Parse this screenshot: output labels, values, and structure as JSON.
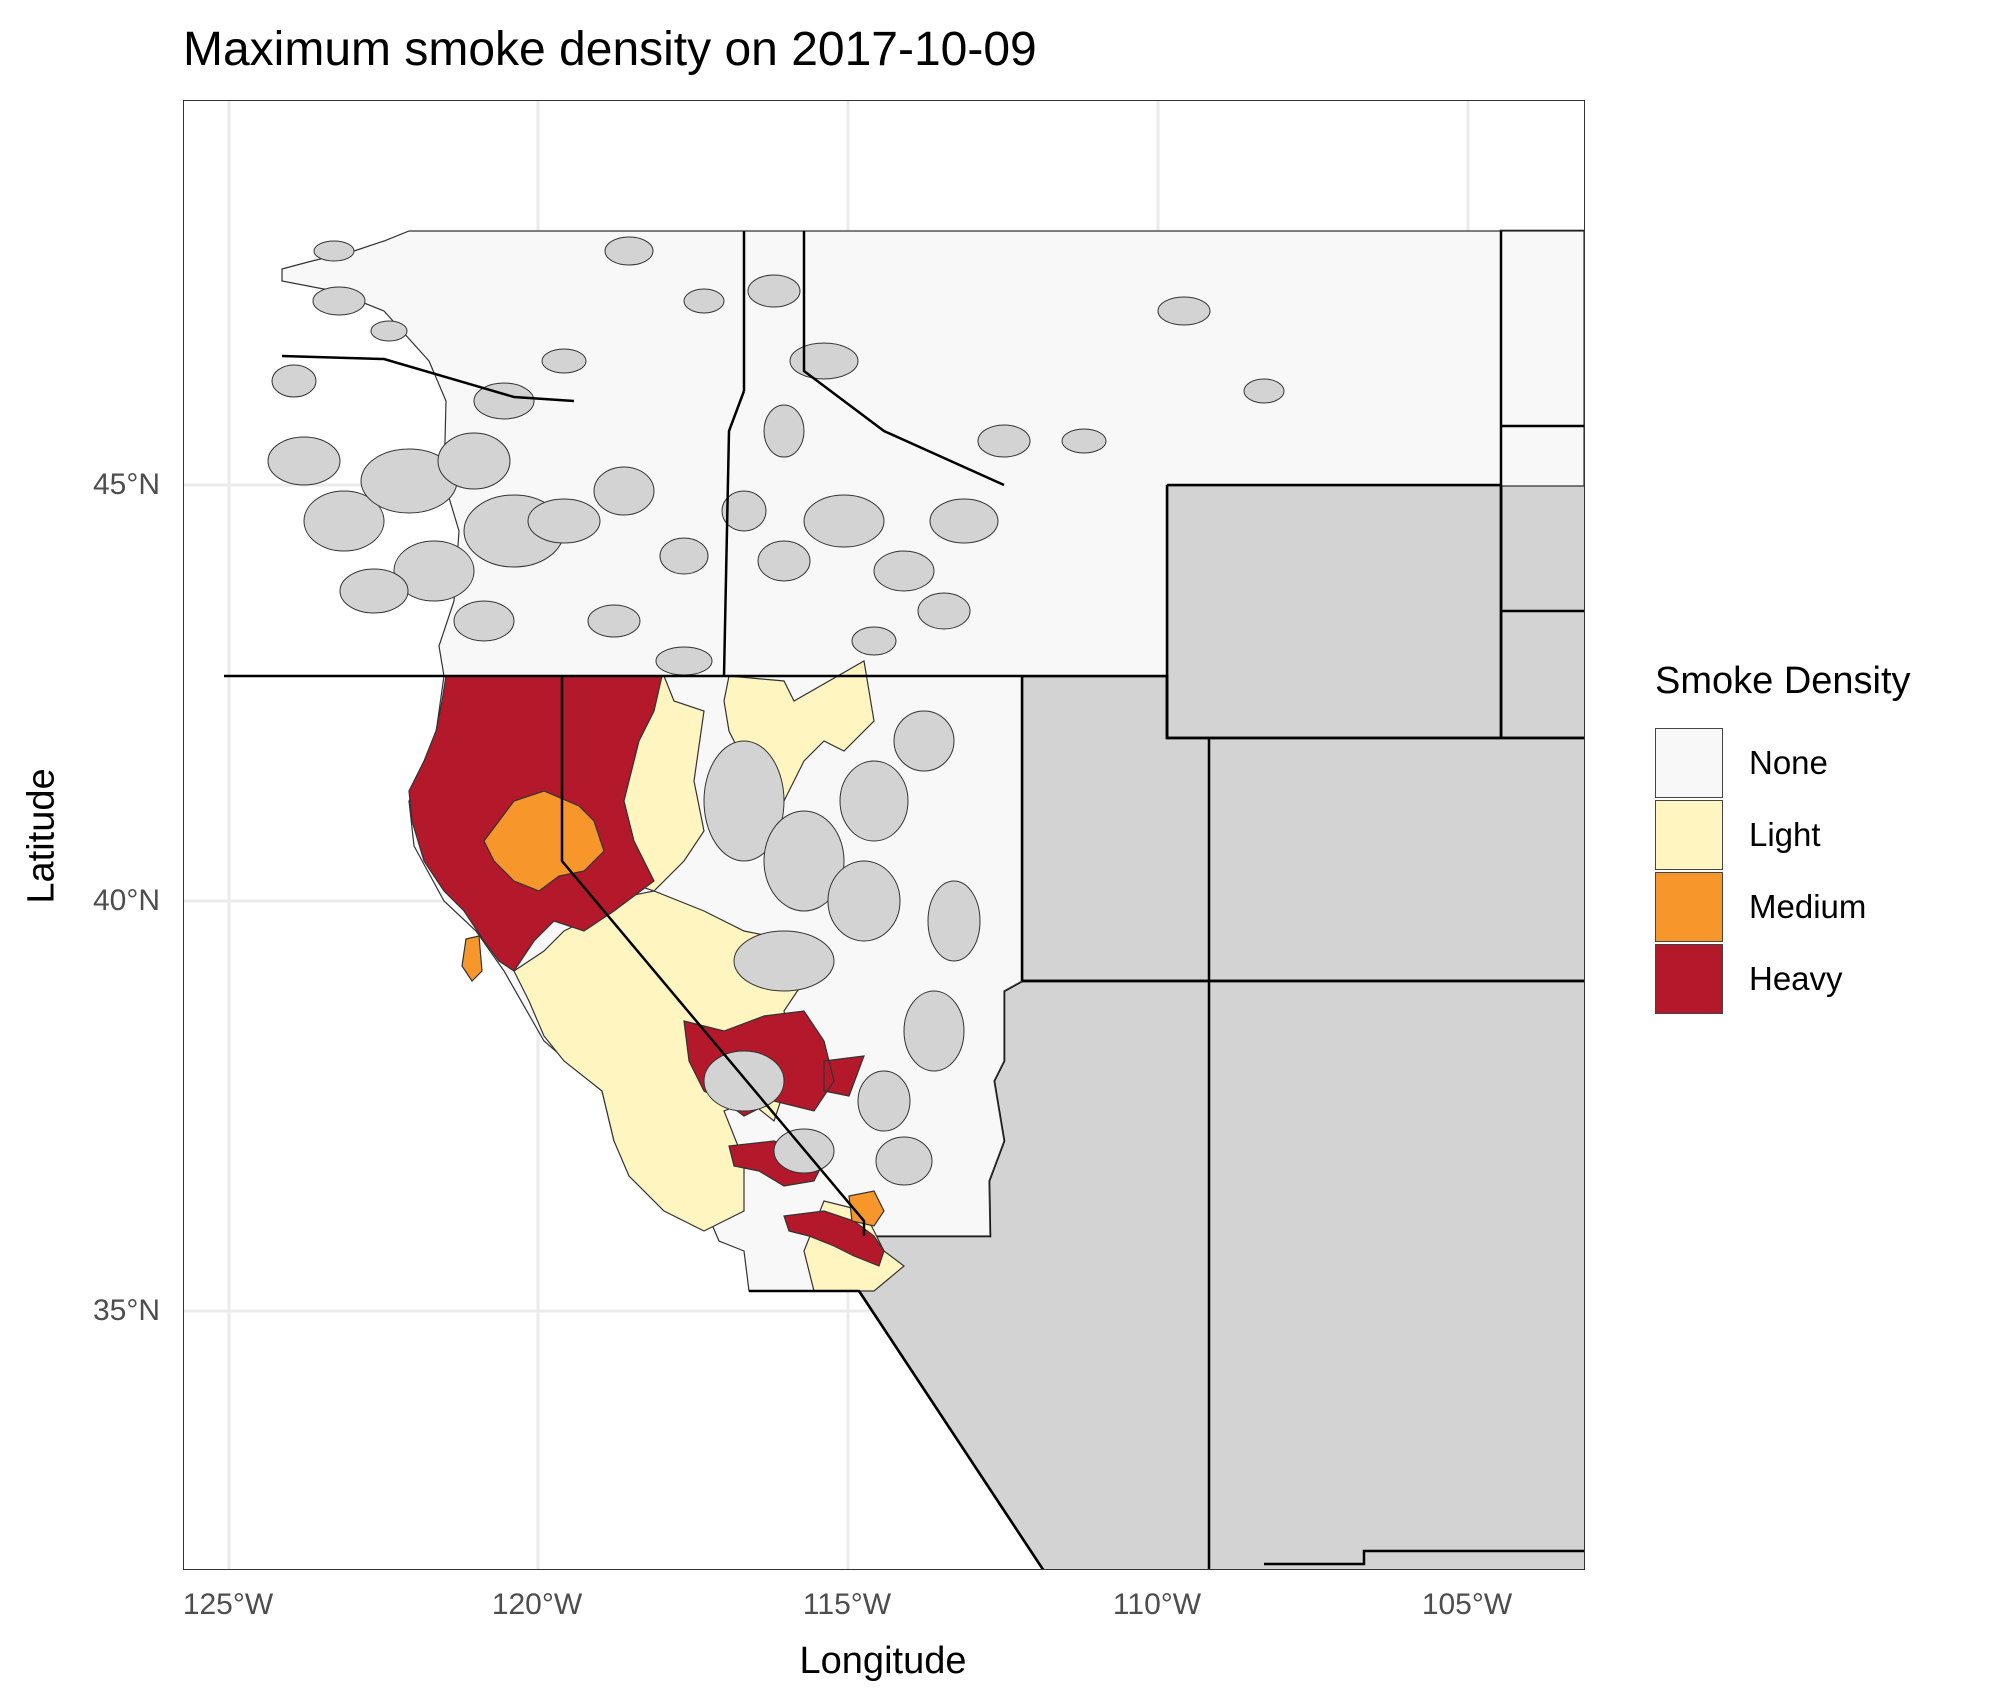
{
  "title": "Maximum smoke density on 2017-10-09",
  "axes": {
    "xlabel": "Longitude",
    "ylabel": "Latitude",
    "x_ticks": [
      "125°W",
      "120°W",
      "115°W",
      "110°W",
      "105°W"
    ],
    "y_ticks": [
      "45°N",
      "40°N",
      "35°N"
    ]
  },
  "legend": {
    "title": "Smoke Density",
    "items": [
      {
        "label": "None",
        "color": "#f8f8f8"
      },
      {
        "label": "Light",
        "color": "#fff5c0"
      },
      {
        "label": "Medium",
        "color": "#f7962b"
      },
      {
        "label": "Heavy",
        "color": "#b3182b"
      }
    ]
  },
  "colors": {
    "no_data": "#d3d3d3",
    "gridline": "#ebebeb",
    "border": "#000000"
  },
  "chart_data": {
    "type": "map",
    "title": "Maximum smoke density on 2017-10-09",
    "xlabel": "Longitude",
    "ylabel": "Latitude",
    "xlim": [
      -125.8,
      -103.0
    ],
    "ylim": [
      31.3,
      49.5
    ],
    "grid": true,
    "legend_position": "right",
    "categories": [
      "None",
      "Light",
      "Medium",
      "Heavy"
    ],
    "regions": {
      "Washington": "None",
      "Oregon": "None",
      "Idaho": "None",
      "Northern California coast": "Heavy",
      "Sacramento Valley": "Medium",
      "San Francisco Bay Area": "Heavy",
      "Central Valley": "Light",
      "Southern Sierra": "Heavy",
      "Los Angeles area": "Heavy",
      "San Bernardino area": "Medium",
      "San Diego area": "Light",
      "Western Nevada": "Light",
      "Eastern Nevada": "None"
    }
  }
}
